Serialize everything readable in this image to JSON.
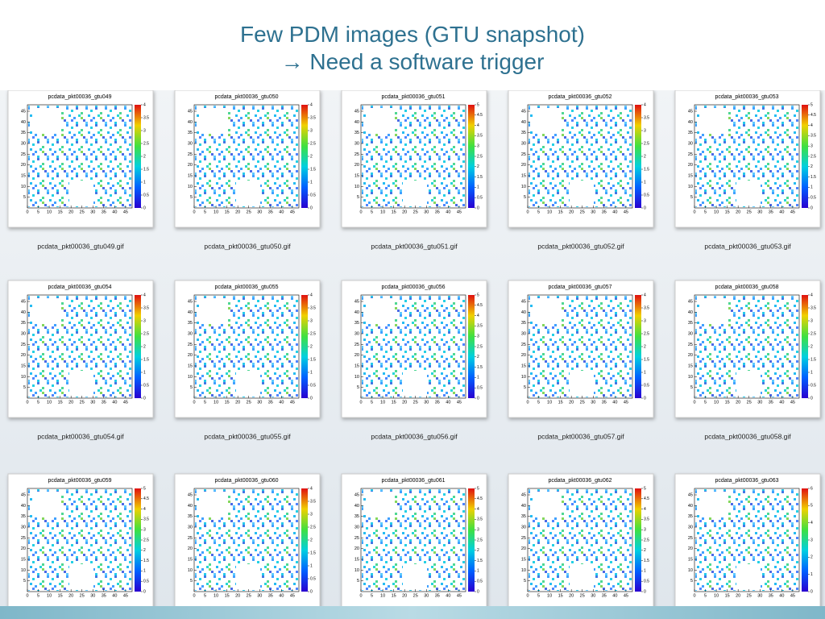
{
  "title_lines": [
    "Few PDM images (GTU snapshot)",
    "→ Need a software trigger"
  ],
  "axis_ticks": [
    0,
    5,
    10,
    15,
    20,
    25,
    30,
    35,
    40,
    45
  ],
  "panels": [
    {
      "title": "pcdata_pkt00036_gtu049",
      "caption": "pcdata_pkt00036_gtu049.gif",
      "colorbar_ticks": [
        0,
        0.5,
        1,
        1.5,
        2,
        2.5,
        3,
        3.5,
        4
      ]
    },
    {
      "title": "pcdata_pkt00036_gtu050",
      "caption": "pcdata_pkt00036_gtu050.gif",
      "colorbar_ticks": [
        0,
        0.5,
        1,
        1.5,
        2,
        2.5,
        3,
        3.5,
        4
      ]
    },
    {
      "title": "pcdata_pkt00036_gtu051",
      "caption": "pcdata_pkt00036_gtu051.gif",
      "colorbar_ticks": [
        0,
        0.5,
        1,
        1.5,
        2,
        2.5,
        3,
        3.5,
        4,
        4.5,
        5
      ]
    },
    {
      "title": "pcdata_pkt00036_gtu052",
      "caption": "pcdata_pkt00036_gtu052.gif",
      "colorbar_ticks": [
        0,
        0.5,
        1,
        1.5,
        2,
        2.5,
        3,
        3.5,
        4
      ]
    },
    {
      "title": "pcdata_pkt00036_gtu053",
      "caption": "pcdata_pkt00036_gtu053.gif",
      "colorbar_ticks": [
        0,
        0.5,
        1,
        1.5,
        2,
        2.5,
        3,
        3.5,
        4,
        4.5,
        5
      ]
    },
    {
      "title": "pcdata_pkt00036_gtu054",
      "caption": "pcdata_pkt00036_gtu054.gif",
      "colorbar_ticks": [
        0,
        0.5,
        1,
        1.5,
        2,
        2.5,
        3,
        3.5,
        4
      ]
    },
    {
      "title": "pcdata_pkt00036_gtu055",
      "caption": "pcdata_pkt00036_gtu055.gif",
      "colorbar_ticks": [
        0,
        0.5,
        1,
        1.5,
        2,
        2.5,
        3,
        3.5,
        4
      ]
    },
    {
      "title": "pcdata_pkt00036_gtu056",
      "caption": "pcdata_pkt00036_gtu056.gif",
      "colorbar_ticks": [
        0,
        0.5,
        1,
        1.5,
        2,
        2.5,
        3,
        3.5,
        4,
        4.5,
        5
      ]
    },
    {
      "title": "pcdata_pkt00036_gtu057",
      "caption": "pcdata_pkt00036_gtu057.gif",
      "colorbar_ticks": [
        0,
        0.5,
        1,
        1.5,
        2,
        2.5,
        3,
        3.5,
        4
      ]
    },
    {
      "title": "pcdata_pkt00036_gtu058",
      "caption": "pcdata_pkt00036_gtu058.gif",
      "colorbar_ticks": [
        0,
        0.5,
        1,
        1.5,
        2,
        2.5,
        3,
        3.5,
        4
      ]
    },
    {
      "title": "pcdata_pkt00036_gtu059",
      "colorbar_ticks": [
        0,
        0.5,
        1,
        1.5,
        2,
        2.5,
        3,
        3.5,
        4,
        4.5,
        5
      ]
    },
    {
      "title": "pcdata_pkt00036_gtu060",
      "colorbar_ticks": [
        0,
        0.5,
        1,
        1.5,
        2,
        2.5,
        3,
        3.5,
        4
      ]
    },
    {
      "title": "pcdata_pkt00036_gtu061",
      "colorbar_ticks": [
        0,
        0.5,
        1,
        1.5,
        2,
        2.5,
        3,
        3.5,
        4,
        4.5,
        5
      ]
    },
    {
      "title": "pcdata_pkt00036_gtu062",
      "colorbar_ticks": [
        0,
        0.5,
        1,
        1.5,
        2,
        2.5,
        3,
        3.5,
        4,
        4.5,
        5
      ]
    },
    {
      "title": "pcdata_pkt00036_gtu063",
      "colorbar_ticks": [
        0,
        1,
        2,
        3,
        4,
        5,
        6
      ]
    }
  ]
}
